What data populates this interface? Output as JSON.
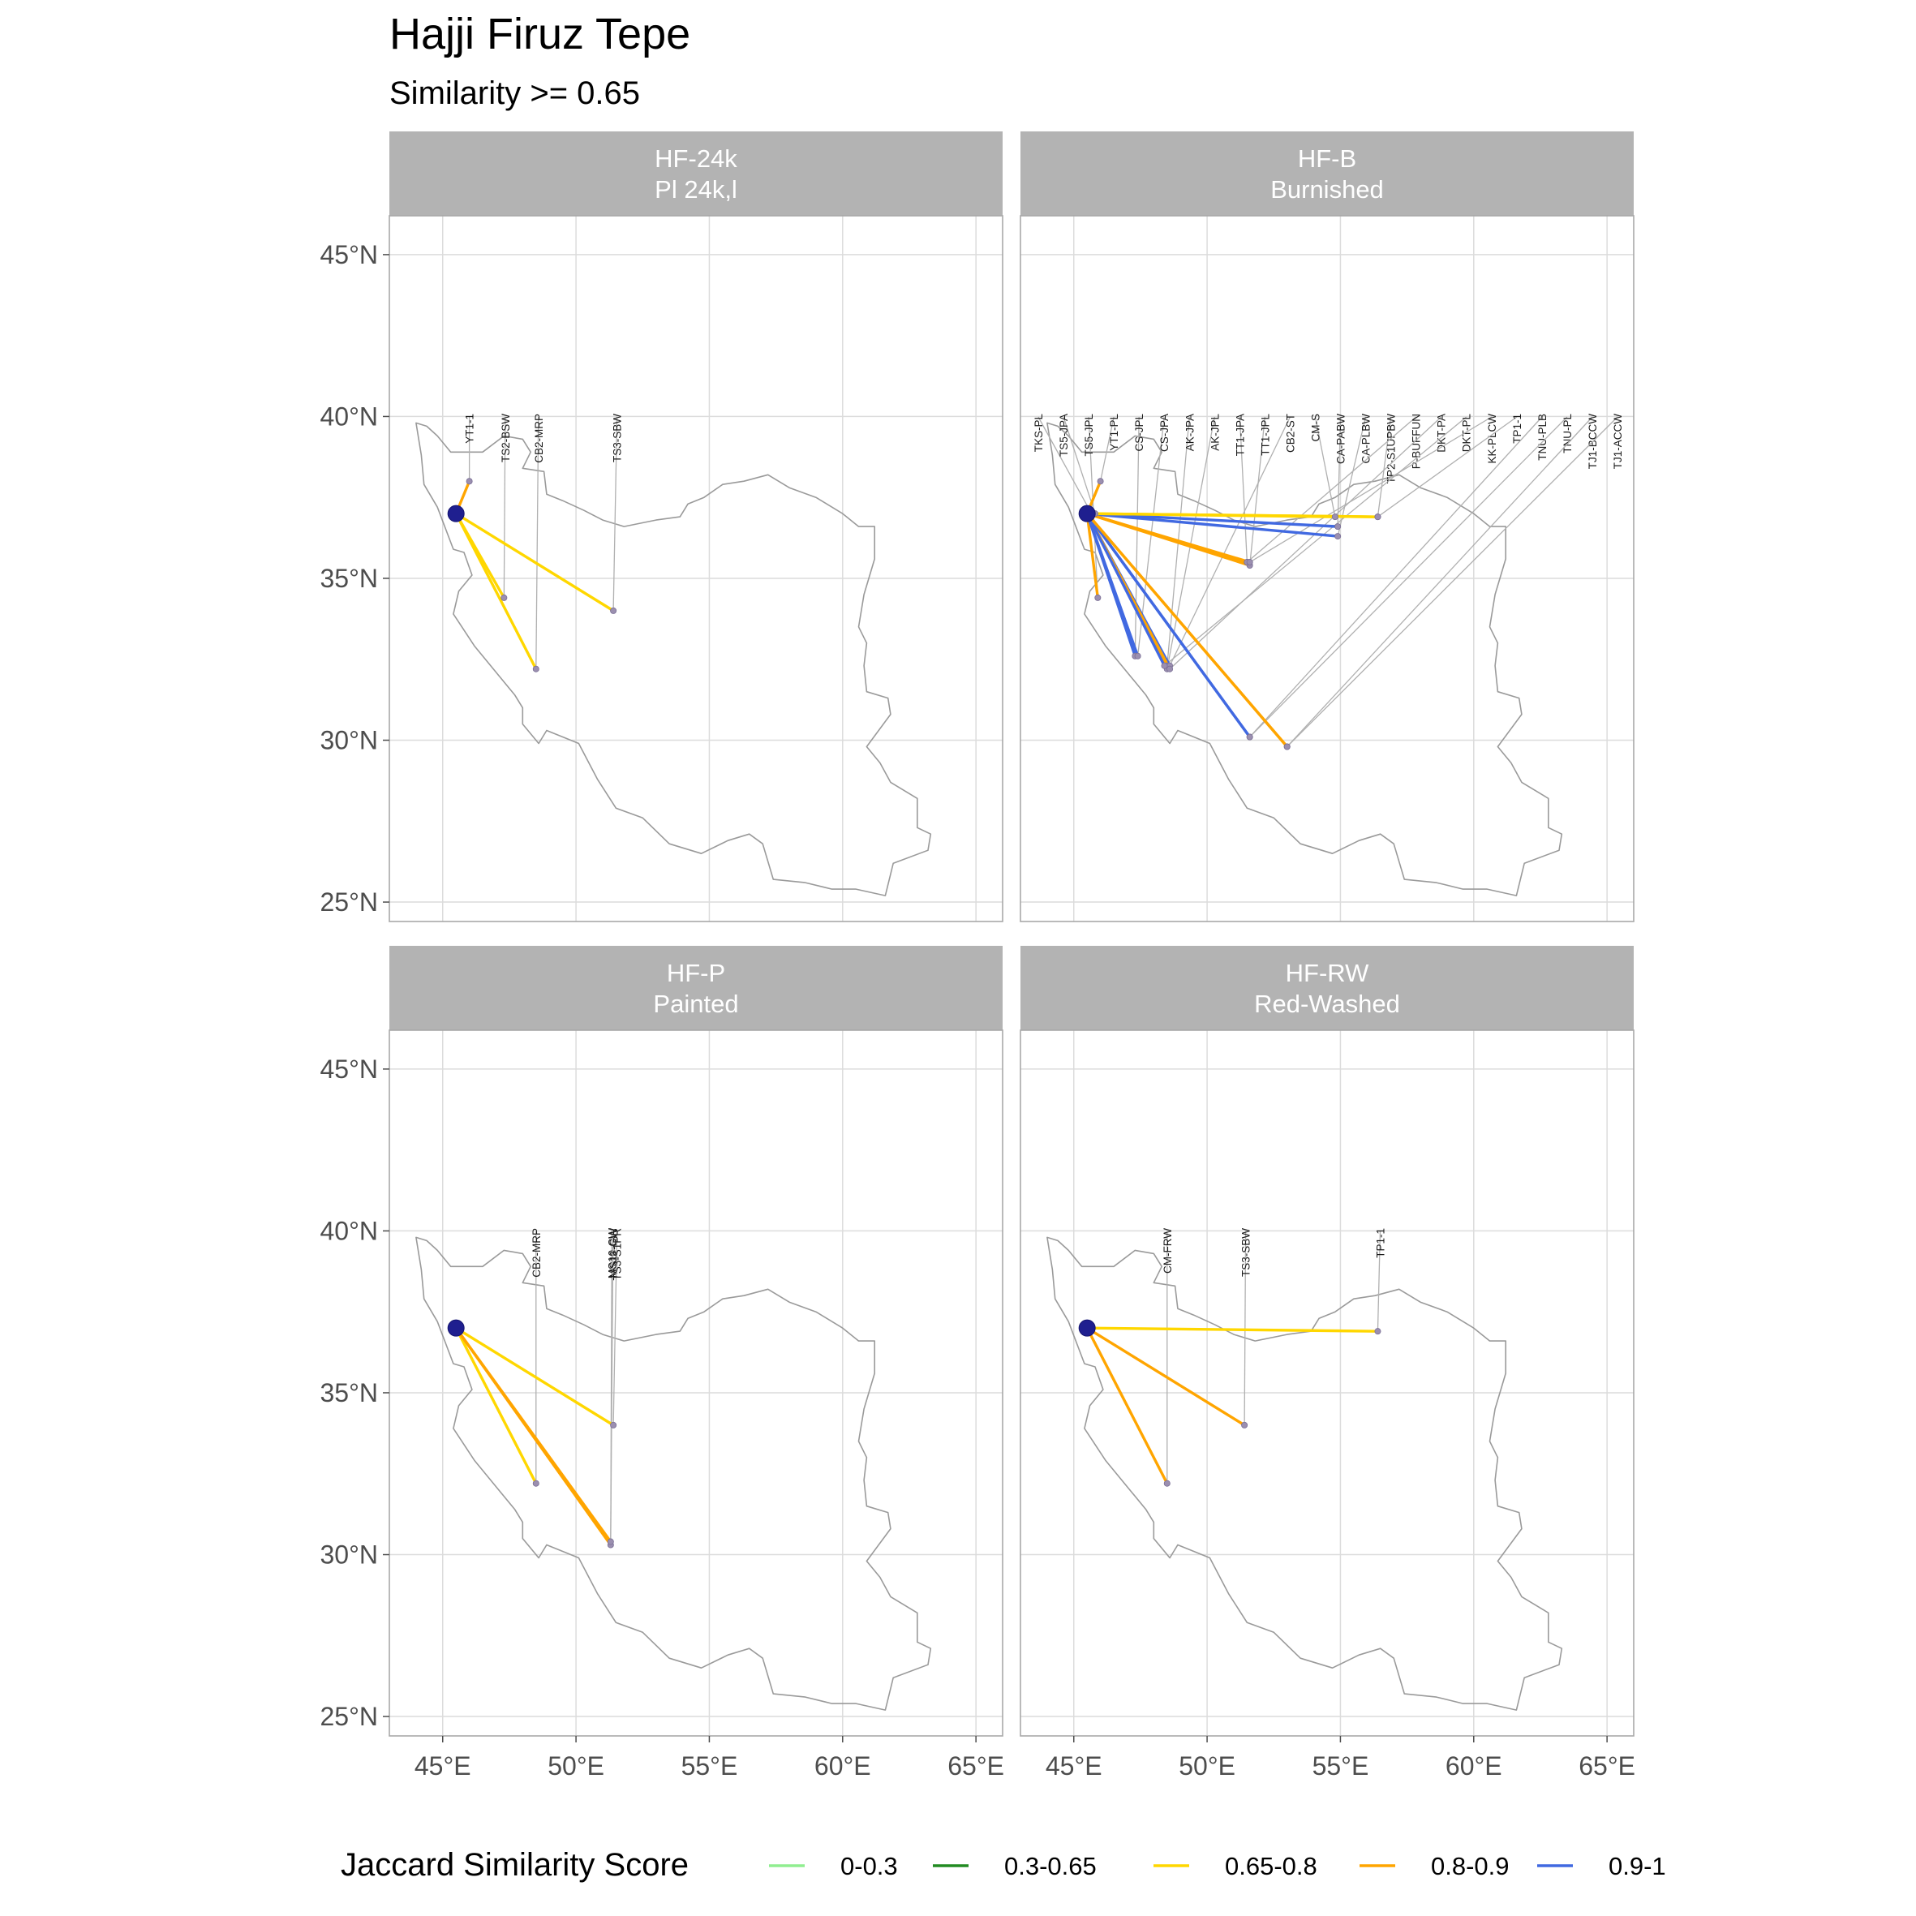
{
  "title": "Hajji Firuz Tepe",
  "subtitle": "Similarity >= 0.65",
  "chart_data": {
    "type": "map-network",
    "title": "Hajji Firuz Tepe",
    "subtitle": "Similarity >= 0.65",
    "x_ticks": [
      "45°E",
      "50°E",
      "55°E",
      "60°E",
      "65°E"
    ],
    "y_ticks": [
      "45°N",
      "40°N",
      "35°N",
      "30°N",
      "25°N"
    ],
    "x_tick_values": [
      45,
      50,
      55,
      60,
      65
    ],
    "y_tick_values": [
      45,
      40,
      35,
      30,
      25
    ],
    "xlim": [
      43,
      66
    ],
    "ylim": [
      24.4,
      46.2
    ],
    "grid": true,
    "legend": {
      "title": "Jaccard Similarity Score",
      "position": "bottom",
      "items": [
        {
          "label": "0-0.3",
          "color": "#90EE90"
        },
        {
          "label": "0.3-0.65",
          "color": "#228B22"
        },
        {
          "label": "0.65-0.8",
          "color": "#FFD700"
        },
        {
          "label": "0.8-0.9",
          "color": "#FFA500"
        },
        {
          "label": "0.9-1",
          "color": "#4169E1"
        }
      ]
    },
    "origin": {
      "name": "Hajji Firuz Tepe",
      "lon": 45.5,
      "lat": 37.0
    },
    "panels": [
      {
        "line1": "HF-24k",
        "line2": "Pl 24k,l",
        "links": [
          {
            "label": "YT1-1",
            "lon": 46.0,
            "lat": 38.0,
            "bin": "0.8-0.9"
          },
          {
            "label": "TS2-BSW",
            "lon": 47.3,
            "lat": 34.4,
            "bin": "0.65-0.8"
          },
          {
            "label": "CB2-MRP",
            "lon": 48.5,
            "lat": 32.2,
            "bin": "0.65-0.8"
          },
          {
            "label": "TS3-SBW",
            "lon": 51.4,
            "lat": 34.0,
            "bin": "0.65-0.8"
          }
        ]
      },
      {
        "line1": "HF-B",
        "line2": "Burnished",
        "links": [
          {
            "label": "TKS-PL",
            "lon": 45.6,
            "lat": 37.1,
            "bin": "0.9-1"
          },
          {
            "label": "TS5-JPA",
            "lon": 45.8,
            "lat": 37.0,
            "bin": "0.8-0.9"
          },
          {
            "label": "TS5-JPL",
            "lon": 45.9,
            "lat": 34.4,
            "bin": "0.8-0.9"
          },
          {
            "label": "YT1-PL",
            "lon": 46.0,
            "lat": 38.0,
            "bin": "0.8-0.9"
          },
          {
            "label": "CS-JPL",
            "lon": 47.3,
            "lat": 32.6,
            "bin": "0.9-1"
          },
          {
            "label": "CS-JPA",
            "lon": 47.4,
            "lat": 32.6,
            "bin": "0.9-1"
          },
          {
            "label": "AK-JPA",
            "lon": 48.5,
            "lat": 32.3,
            "bin": "0.8-0.9"
          },
          {
            "label": "AK-JPL",
            "lon": 48.5,
            "lat": 32.2,
            "bin": "0.8-0.9"
          },
          {
            "label": "TT1-JPA",
            "lon": 51.5,
            "lat": 35.5,
            "bin": "0.8-0.9"
          },
          {
            "label": "TT1-JPL",
            "lon": 51.6,
            "lat": 35.4,
            "bin": "0.8-0.9"
          },
          {
            "label": "CB2-ST",
            "lon": 48.6,
            "lat": 32.3,
            "bin": "0.9-1"
          },
          {
            "label": "CM-S",
            "lon": 54.8,
            "lat": 36.9,
            "bin": "0.65-0.8"
          },
          {
            "label": "CA-PABW",
            "lon": 54.9,
            "lat": 36.6,
            "bin": "0.9-1"
          },
          {
            "label": "CA-PLBW",
            "lon": 54.9,
            "lat": 36.3,
            "bin": "0.9-1"
          },
          {
            "label": "TP2-S1UPBW",
            "lon": 56.4,
            "lat": 36.9,
            "bin": "0.65-0.8"
          },
          {
            "label": "P-BUFFUN",
            "lon": 51.5,
            "lat": 35.5,
            "bin": "0.8-0.9"
          },
          {
            "label": "DKT-PA",
            "lon": 48.6,
            "lat": 32.2,
            "bin": "0.8-0.9"
          },
          {
            "label": "DKT-PL",
            "lon": 48.4,
            "lat": 32.3,
            "bin": "0.9-1"
          },
          {
            "label": "KK-PLCW",
            "lon": 51.6,
            "lat": 35.5,
            "bin": "0.8-0.9"
          },
          {
            "label": "TP1-1",
            "lon": 56.4,
            "lat": 36.9,
            "bin": "0.65-0.8"
          },
          {
            "label": "TNU-PLB",
            "lon": 51.6,
            "lat": 30.1,
            "bin": "0.9-1"
          },
          {
            "label": "TNU-PL",
            "lon": 51.6,
            "lat": 30.1,
            "bin": "0.9-1"
          },
          {
            "label": "TJ1-BCCW",
            "lon": 53.0,
            "lat": 29.8,
            "bin": "0.8-0.9"
          },
          {
            "label": "TJ1-ACCW",
            "lon": 53.0,
            "lat": 29.8,
            "bin": "0.8-0.9"
          }
        ]
      },
      {
        "line1": "HF-P",
        "line2": "Painted",
        "links": [
          {
            "label": "CB2-MRP",
            "lon": 48.5,
            "lat": 32.2,
            "bin": "0.65-0.8"
          },
          {
            "label": "MS10-CW",
            "lon": 51.3,
            "lat": 30.3,
            "bin": "0.8-0.9"
          },
          {
            "label": "MS11-CW",
            "lon": 51.3,
            "lat": 30.4,
            "bin": "0.8-0.9"
          },
          {
            "label": "TS3-S1PR",
            "lon": 51.4,
            "lat": 34.0,
            "bin": "0.65-0.8"
          }
        ]
      },
      {
        "line1": "HF-RW",
        "line2": "Red-Washed",
        "links": [
          {
            "label": "CM-FRW",
            "lon": 48.5,
            "lat": 32.2,
            "bin": "0.8-0.9"
          },
          {
            "label": "TS3-SBW",
            "lon": 51.4,
            "lat": 34.0,
            "bin": "0.8-0.9"
          },
          {
            "label": "TP1-1",
            "lon": 56.4,
            "lat": 36.9,
            "bin": "0.65-0.8"
          }
        ]
      }
    ],
    "outline": [
      [
        44.0,
        39.8
      ],
      [
        44.4,
        39.7
      ],
      [
        44.8,
        39.4
      ],
      [
        45.3,
        38.9
      ],
      [
        46.5,
        38.9
      ],
      [
        47.3,
        39.4
      ],
      [
        48.0,
        39.3
      ],
      [
        48.3,
        38.9
      ],
      [
        48.0,
        38.4
      ],
      [
        48.8,
        38.3
      ],
      [
        48.9,
        37.6
      ],
      [
        49.5,
        37.4
      ],
      [
        50.3,
        37.1
      ],
      [
        51.0,
        36.8
      ],
      [
        51.8,
        36.6
      ],
      [
        53.0,
        36.8
      ],
      [
        53.9,
        36.9
      ],
      [
        54.2,
        37.3
      ],
      [
        54.8,
        37.5
      ],
      [
        55.5,
        37.9
      ],
      [
        56.3,
        38.0
      ],
      [
        57.2,
        38.2
      ],
      [
        58.0,
        37.8
      ],
      [
        59.0,
        37.5
      ],
      [
        60.0,
        37.0
      ],
      [
        60.6,
        36.6
      ],
      [
        61.2,
        36.6
      ],
      [
        61.2,
        35.6
      ],
      [
        60.8,
        34.5
      ],
      [
        60.6,
        33.5
      ],
      [
        60.9,
        33.0
      ],
      [
        60.8,
        32.3
      ],
      [
        60.9,
        31.5
      ],
      [
        61.7,
        31.3
      ],
      [
        61.8,
        30.8
      ],
      [
        60.9,
        29.8
      ],
      [
        61.4,
        29.3
      ],
      [
        61.8,
        28.7
      ],
      [
        62.8,
        28.2
      ],
      [
        62.8,
        27.3
      ],
      [
        63.3,
        27.1
      ],
      [
        63.2,
        26.6
      ],
      [
        61.9,
        26.2
      ],
      [
        61.6,
        25.2
      ],
      [
        60.5,
        25.4
      ],
      [
        59.6,
        25.4
      ],
      [
        58.6,
        25.6
      ],
      [
        57.4,
        25.7
      ],
      [
        57.0,
        26.8
      ],
      [
        56.5,
        27.1
      ],
      [
        55.7,
        26.9
      ],
      [
        54.7,
        26.5
      ],
      [
        53.5,
        26.8
      ],
      [
        52.5,
        27.6
      ],
      [
        51.5,
        27.9
      ],
      [
        50.8,
        28.8
      ],
      [
        50.1,
        29.9
      ],
      [
        49.5,
        30.1
      ],
      [
        48.9,
        30.3
      ],
      [
        48.6,
        29.9
      ],
      [
        48.0,
        30.5
      ],
      [
        48.0,
        31.0
      ],
      [
        47.7,
        31.4
      ],
      [
        47.2,
        31.9
      ],
      [
        46.2,
        32.9
      ],
      [
        45.4,
        33.9
      ],
      [
        45.6,
        34.6
      ],
      [
        46.1,
        35.1
      ],
      [
        45.8,
        35.8
      ],
      [
        45.4,
        35.9
      ],
      [
        44.8,
        37.2
      ],
      [
        44.3,
        37.9
      ],
      [
        44.2,
        38.8
      ],
      [
        44.0,
        39.8
      ]
    ]
  }
}
